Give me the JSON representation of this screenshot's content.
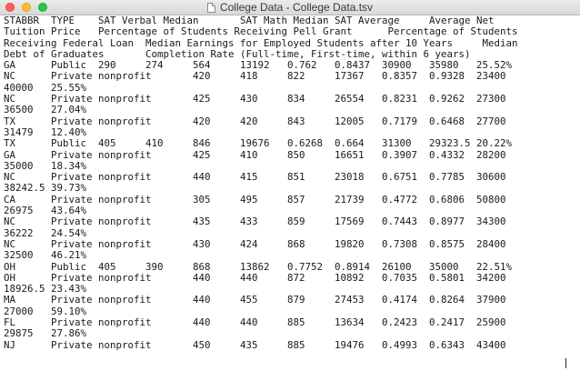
{
  "window": {
    "title": "College Data - College Data.tsv"
  },
  "lines": [
    "STABBR  TYPE    SAT Verbal Median       SAT Math Median SAT Average     Average Net",
    "Tuition Price   Percentage of Students Receiving Pell Grant      Percentage of Students",
    "Receiving Federal Loan  Median Earnings for Employed Students after 10 Years     Median",
    "Debt of Graduates       Completion Rate (Full-time, First-time, within 6 years)",
    "GA      Public  290     274     564     13192   0.762   0.8437  30900   35980   25.52%",
    "NC      Private nonprofit       420     418     822     17367   0.8357  0.9328  23400",
    "40000   25.55%",
    "NC      Private nonprofit       425     430     834     26554   0.8231  0.9262  27300",
    "36500   27.04%",
    "TX      Private nonprofit       420     420     843     12005   0.7179  0.6468  27700",
    "31479   12.40%",
    "TX      Public  405     410     846     19676   0.6268  0.664   31300   29323.5 20.22%",
    "GA      Private nonprofit       425     410     850     16651   0.3907  0.4332  28200",
    "35000   18.34%",
    "NC      Private nonprofit       440     415     851     23018   0.6751  0.7785  30600",
    "38242.5 39.73%",
    "CA      Private nonprofit       305     495     857     21739   0.4772  0.6806  50800",
    "26975   43.64%",
    "NC      Private nonprofit       435     433     859     17569   0.7443  0.8977  34300",
    "36222   24.54%",
    "NC      Private nonprofit       430     424     868     19820   0.7308  0.8575  28400",
    "32500   46.21%",
    "OH      Public  405     390     868     13862   0.7752  0.8914  26100   35000   22.51%",
    "OH      Private nonprofit       440     440     872     10892   0.7035  0.5801  34200",
    "18926.5 23.43%",
    "MA      Private nonprofit       440     455     879     27453   0.4174  0.8264  37900",
    "27000   59.10%",
    "FL      Private nonprofit       440     440     885     13634   0.2423  0.2417  25900",
    "29875   27.86%",
    "NJ      Private nonprofit       450     435     885     19476   0.4993  0.6343  43400"
  ]
}
